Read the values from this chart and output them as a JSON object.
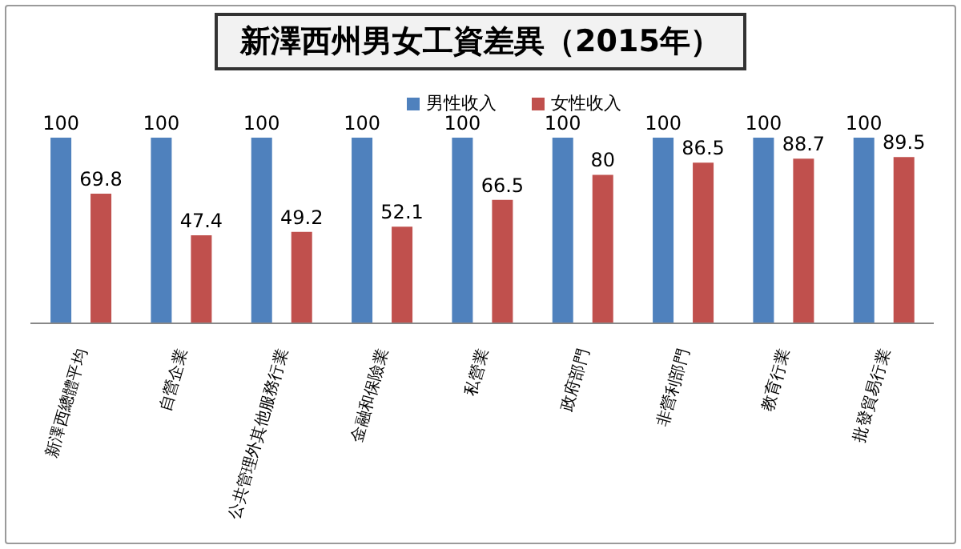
{
  "chart_data": {
    "type": "bar",
    "title": "新澤西州男女工資差異（2015年）",
    "categories": [
      "新澤西總體平均",
      "自營企業",
      "公共管理外其他服務行業",
      "金融和保險業",
      "私營業",
      "政府部門",
      "非營利部門",
      "教育行業",
      "批發貿易行業"
    ],
    "series": [
      {
        "name": "男性收入",
        "color": "#4f81bd",
        "values": [
          100,
          100,
          100,
          100,
          100,
          100,
          100,
          100,
          100
        ]
      },
      {
        "name": "女性收入",
        "color": "#c0504d",
        "values": [
          69.8,
          47.4,
          49.2,
          52.1,
          66.5,
          80,
          86.5,
          88.7,
          89.5
        ]
      }
    ],
    "data_labels": true,
    "legend": "top",
    "grid": false
  }
}
